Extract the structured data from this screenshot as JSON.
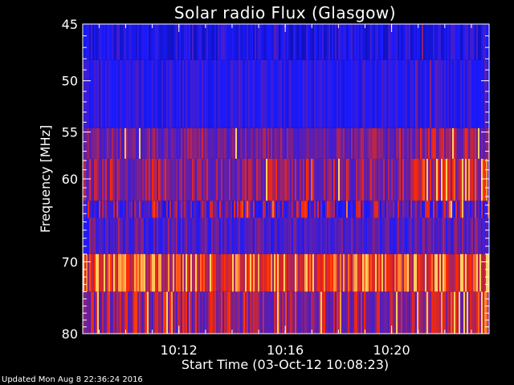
{
  "chart_data": {
    "type": "heatmap",
    "title": "Solar radio Flux (Glasgow)",
    "xlabel": "Start Time (03-Oct-12 10:08:23)",
    "ylabel": "Frequency [MHz]",
    "x_ticks": [
      "10:12",
      "10:16",
      "10:20"
    ],
    "y_ticks": [
      "45",
      "50",
      "55",
      "60",
      "70",
      "80"
    ],
    "y_tick_values": [
      45,
      50,
      55,
      60,
      70,
      80
    ],
    "ylim": [
      45,
      80
    ],
    "y_scale": "log",
    "x_start": "10:08:23",
    "x_end": "10:23:40",
    "bands": [
      {
        "from_mhz": 45.0,
        "to_mhz": 48.1,
        "tone": "deep-blue"
      },
      {
        "from_mhz": 48.1,
        "to_mhz": 54.6,
        "tone": "blue"
      },
      {
        "from_mhz": 54.6,
        "to_mhz": 57.8,
        "tone": "purple"
      },
      {
        "from_mhz": 57.8,
        "to_mhz": 62.5,
        "tone": "purple-red"
      },
      {
        "from_mhz": 62.5,
        "to_mhz": 64.5,
        "tone": "mixed"
      },
      {
        "from_mhz": 64.5,
        "to_mhz": 69.0,
        "tone": "blue-purple"
      },
      {
        "from_mhz": 69.0,
        "to_mhz": 74.0,
        "tone": "bright-red"
      },
      {
        "from_mhz": 74.0,
        "to_mhz": 80.0,
        "tone": "dark-red-purple"
      }
    ],
    "colors": {
      "background": "#000000",
      "frame": "#ffffff",
      "low": "#1a1aff",
      "mid": "#6a1fa0",
      "high": "#ff2a00",
      "peak": "#ffd060"
    }
  },
  "footer": {
    "updated": "Updated Mon Aug  8 22:36:24 2016"
  }
}
